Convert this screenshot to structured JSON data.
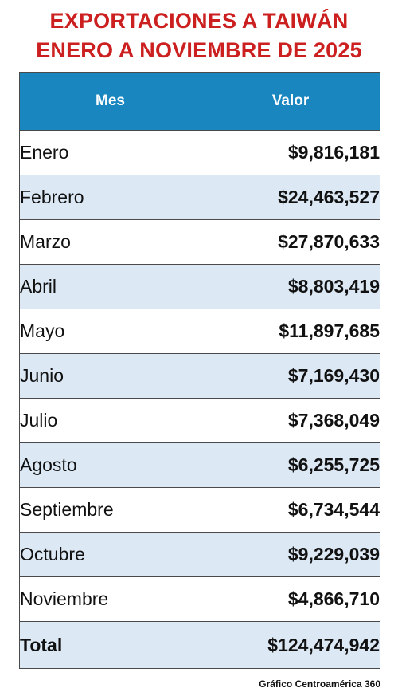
{
  "title_line1": "EXPORTACIONES A TAIWÁN",
  "title_line2": "ENERO A NOVIEMBRE DE 2025",
  "colors": {
    "title": "#cc1f1f",
    "header_bg": "#1a86c0",
    "row_alt_bg": "#dce8f4"
  },
  "chart_data": {
    "type": "table",
    "columns": [
      "Mes",
      "Valor"
    ],
    "rows": [
      {
        "mes": "Enero",
        "valor": "$9,816,181"
      },
      {
        "mes": "Febrero",
        "valor": "$24,463,527"
      },
      {
        "mes": "Marzo",
        "valor": "$27,870,633"
      },
      {
        "mes": "Abril",
        "valor": "$8,803,419"
      },
      {
        "mes": "Mayo",
        "valor": "$11,897,685"
      },
      {
        "mes": "Junio",
        "valor": "$7,169,430"
      },
      {
        "mes": "Julio",
        "valor": "$7,368,049"
      },
      {
        "mes": "Agosto",
        "valor": "$6,255,725"
      },
      {
        "mes": "Septiembre",
        "valor": "$6,734,544"
      },
      {
        "mes": "Octubre",
        "valor": "$9,229,039"
      },
      {
        "mes": "Noviembre",
        "valor": "$4,866,710"
      }
    ],
    "total": {
      "label": "Total",
      "valor": "$124,474,942"
    }
  },
  "source": "Gráfico Centroamérica 360"
}
